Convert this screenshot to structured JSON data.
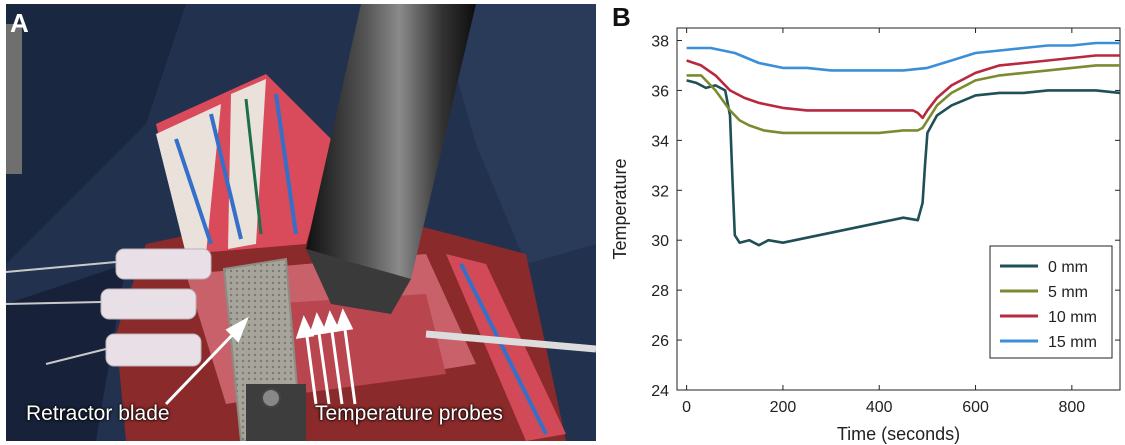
{
  "panel_a": {
    "label": "A",
    "captions": {
      "retractor": "Retractor blade",
      "probes": "Temperature probes"
    }
  },
  "panel_b": {
    "label": "B"
  },
  "chart_data": {
    "type": "line",
    "title": "",
    "xlabel": "Time (seconds)",
    "ylabel": "Temperature",
    "xlim": [
      -20,
      900
    ],
    "ylim": [
      24,
      38.5
    ],
    "xticks": [
      0,
      200,
      400,
      600,
      800
    ],
    "yticks": [
      24,
      26,
      28,
      30,
      32,
      34,
      36,
      38
    ],
    "grid": false,
    "legend": "bottom-right",
    "series": [
      {
        "name": "0 mm",
        "color": "#1f4f57",
        "x": [
          0,
          20,
          40,
          60,
          80,
          90,
          95,
          100,
          110,
          130,
          150,
          170,
          200,
          250,
          300,
          350,
          400,
          450,
          480,
          490,
          495,
          500,
          520,
          550,
          600,
          650,
          700,
          750,
          800,
          850,
          900
        ],
        "y": [
          36.4,
          36.3,
          36.1,
          36.2,
          36.0,
          35.0,
          32.5,
          30.2,
          29.9,
          30.0,
          29.8,
          30.0,
          29.9,
          30.1,
          30.3,
          30.5,
          30.7,
          30.9,
          30.8,
          31.5,
          33.0,
          34.3,
          35.0,
          35.4,
          35.8,
          35.9,
          35.9,
          36.0,
          36.0,
          36.0,
          35.9
        ]
      },
      {
        "name": "5 mm",
        "color": "#7a8c2e",
        "x": [
          0,
          30,
          60,
          90,
          110,
          130,
          160,
          200,
          250,
          300,
          350,
          400,
          450,
          480,
          490,
          500,
          520,
          550,
          600,
          650,
          700,
          750,
          800,
          850,
          900
        ],
        "y": [
          36.6,
          36.6,
          36.0,
          35.2,
          34.8,
          34.6,
          34.4,
          34.3,
          34.3,
          34.3,
          34.3,
          34.3,
          34.4,
          34.4,
          34.5,
          34.8,
          35.4,
          35.9,
          36.4,
          36.6,
          36.7,
          36.8,
          36.9,
          37.0,
          37.0
        ]
      },
      {
        "name": "10 mm",
        "color": "#b8283e",
        "x": [
          0,
          30,
          60,
          90,
          120,
          150,
          200,
          250,
          300,
          350,
          400,
          450,
          470,
          480,
          490,
          500,
          520,
          550,
          600,
          650,
          700,
          750,
          800,
          850,
          900
        ],
        "y": [
          37.2,
          37.0,
          36.6,
          36.0,
          35.7,
          35.5,
          35.3,
          35.2,
          35.2,
          35.2,
          35.2,
          35.2,
          35.2,
          35.1,
          34.9,
          35.2,
          35.7,
          36.2,
          36.7,
          37.0,
          37.1,
          37.2,
          37.3,
          37.4,
          37.4
        ]
      },
      {
        "name": "15 mm",
        "color": "#3a8fd8",
        "x": [
          0,
          50,
          100,
          150,
          200,
          250,
          300,
          350,
          400,
          450,
          500,
          550,
          600,
          650,
          700,
          750,
          800,
          850,
          900
        ],
        "y": [
          37.7,
          37.7,
          37.5,
          37.1,
          36.9,
          36.9,
          36.8,
          36.8,
          36.8,
          36.8,
          36.9,
          37.2,
          37.5,
          37.6,
          37.7,
          37.8,
          37.8,
          37.9,
          37.9
        ]
      }
    ]
  }
}
